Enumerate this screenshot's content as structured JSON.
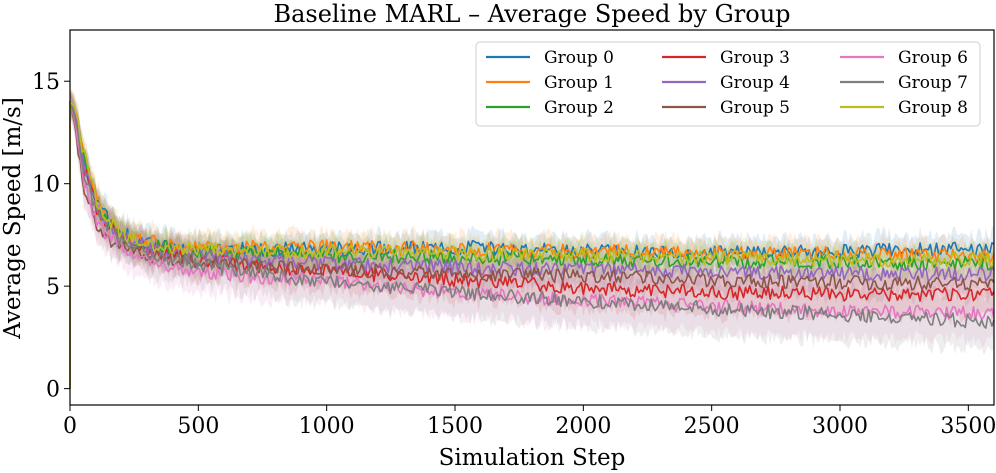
{
  "chart_data": {
    "type": "line",
    "title": "Baseline MARL – Average Speed by Group",
    "xlabel": "Simulation Step",
    "ylabel": "Average Speed [m/s]",
    "xlim": [
      0,
      3600
    ],
    "ylim": [
      -0.8,
      17.5
    ],
    "xticks": [
      0,
      500,
      1000,
      1500,
      2000,
      2500,
      3000,
      3500
    ],
    "yticks": [
      0,
      5,
      10,
      15
    ],
    "grid": false,
    "legend_position": "top-right",
    "legend_columns": 3,
    "shaded_band": true,
    "series": [
      {
        "name": "Group 0",
        "color": "#1f77b4",
        "x": [
          0,
          20,
          50,
          100,
          150,
          200,
          300,
          400,
          500,
          700,
          1000,
          1500,
          2000,
          2500,
          3000,
          3500,
          3600
        ],
        "y": [
          14.0,
          13.6,
          11.5,
          9.2,
          8.2,
          7.6,
          7.1,
          6.9,
          6.8,
          6.8,
          6.8,
          6.9,
          6.7,
          6.6,
          6.7,
          6.8,
          6.8
        ],
        "band": [
          0.6,
          0.6,
          0.7,
          0.7,
          0.7,
          0.7,
          0.7,
          0.7,
          0.7,
          0.7,
          0.7,
          0.7,
          0.7,
          0.7,
          0.7,
          0.7,
          0.7
        ]
      },
      {
        "name": "Group 1",
        "color": "#ff7f0e",
        "x": [
          0,
          20,
          50,
          100,
          150,
          200,
          300,
          400,
          500,
          700,
          1000,
          1500,
          2000,
          2500,
          3000,
          3500,
          3600
        ],
        "y": [
          14.0,
          13.7,
          11.8,
          9.4,
          8.3,
          7.7,
          7.2,
          7.0,
          6.9,
          6.9,
          6.9,
          6.8,
          6.7,
          6.6,
          6.6,
          6.5,
          6.5
        ],
        "band": [
          0.6,
          0.6,
          0.7,
          0.7,
          0.7,
          0.7,
          0.7,
          0.7,
          0.7,
          0.7,
          0.7,
          0.7,
          0.7,
          0.7,
          0.7,
          0.7,
          0.7
        ]
      },
      {
        "name": "Group 2",
        "color": "#2ca02c",
        "x": [
          0,
          20,
          50,
          100,
          150,
          200,
          300,
          400,
          500,
          700,
          1000,
          1500,
          2000,
          2500,
          3000,
          3500,
          3600
        ],
        "y": [
          14.0,
          13.5,
          11.3,
          9.1,
          8.1,
          7.5,
          7.0,
          6.8,
          6.7,
          6.6,
          6.5,
          6.4,
          6.3,
          6.2,
          6.2,
          6.1,
          6.1
        ],
        "band": [
          0.6,
          0.6,
          0.7,
          0.7,
          0.7,
          0.7,
          0.7,
          0.7,
          0.7,
          0.7,
          0.7,
          0.7,
          0.7,
          0.7,
          0.7,
          0.7,
          0.7
        ]
      },
      {
        "name": "Group 3",
        "color": "#d62728",
        "x": [
          0,
          20,
          50,
          100,
          150,
          200,
          300,
          400,
          500,
          700,
          1000,
          1500,
          2000,
          2500,
          3000,
          3500,
          3600
        ],
        "y": [
          14.0,
          13.4,
          11.0,
          8.9,
          7.9,
          7.3,
          6.8,
          6.5,
          6.3,
          6.0,
          5.7,
          5.3,
          4.9,
          4.7,
          4.6,
          4.6,
          4.6
        ],
        "band": [
          0.6,
          0.6,
          0.8,
          0.8,
          0.8,
          0.8,
          0.8,
          0.9,
          0.9,
          0.9,
          1.0,
          1.0,
          1.1,
          1.1,
          1.1,
          1.1,
          1.1
        ]
      },
      {
        "name": "Group 4",
        "color": "#9467bd",
        "x": [
          0,
          20,
          50,
          100,
          150,
          200,
          300,
          400,
          500,
          700,
          1000,
          1500,
          2000,
          2500,
          3000,
          3500,
          3600
        ],
        "y": [
          14.0,
          13.5,
          11.2,
          9.0,
          8.0,
          7.4,
          6.9,
          6.6,
          6.5,
          6.3,
          6.1,
          5.9,
          5.8,
          5.7,
          5.6,
          5.6,
          5.6
        ],
        "band": [
          0.6,
          0.6,
          0.7,
          0.7,
          0.7,
          0.7,
          0.7,
          0.7,
          0.7,
          0.7,
          0.7,
          0.7,
          0.7,
          0.7,
          0.7,
          0.7,
          0.7
        ]
      },
      {
        "name": "Group 5",
        "color": "#8c564b",
        "x": [
          0,
          20,
          50,
          100,
          150,
          200,
          300,
          400,
          500,
          700,
          1000,
          1500,
          2000,
          2500,
          3000,
          3500,
          3600
        ],
        "y": [
          14.0,
          12.8,
          10.0,
          8.1,
          7.3,
          6.9,
          6.5,
          6.3,
          6.2,
          6.0,
          5.8,
          5.6,
          5.5,
          5.3,
          5.2,
          5.1,
          5.1
        ],
        "band": [
          0.6,
          0.6,
          0.7,
          0.7,
          0.7,
          0.7,
          0.7,
          0.7,
          0.7,
          0.7,
          0.7,
          0.7,
          0.7,
          0.7,
          0.7,
          0.7,
          0.7
        ]
      },
      {
        "name": "Group 6",
        "color": "#e377c2",
        "x": [
          0,
          20,
          50,
          100,
          150,
          200,
          300,
          400,
          500,
          700,
          1000,
          1500,
          2000,
          2500,
          3000,
          3500,
          3600
        ],
        "y": [
          14.0,
          13.0,
          10.3,
          8.3,
          7.4,
          6.9,
          6.3,
          5.9,
          5.7,
          5.5,
          5.2,
          4.7,
          4.3,
          4.0,
          3.8,
          3.7,
          3.7
        ],
        "band": [
          0.6,
          0.7,
          0.9,
          0.9,
          1.0,
          1.0,
          1.0,
          1.0,
          1.0,
          1.1,
          1.1,
          1.2,
          1.2,
          1.3,
          1.3,
          1.3,
          1.3
        ]
      },
      {
        "name": "Group 7",
        "color": "#7f7f7f",
        "x": [
          0,
          20,
          50,
          100,
          150,
          200,
          300,
          400,
          500,
          700,
          1000,
          1500,
          2000,
          2500,
          3000,
          3500,
          3600
        ],
        "y": [
          14.0,
          13.2,
          10.8,
          8.7,
          7.8,
          7.2,
          6.7,
          6.3,
          6.1,
          5.7,
          5.2,
          4.7,
          4.3,
          3.9,
          3.6,
          3.3,
          3.3
        ],
        "band": [
          0.6,
          0.7,
          0.9,
          0.9,
          1.0,
          1.0,
          1.0,
          1.0,
          1.0,
          1.1,
          1.1,
          1.2,
          1.2,
          1.3,
          1.3,
          1.3,
          1.3
        ]
      },
      {
        "name": "Group 8",
        "color": "#bcbd22",
        "x": [
          0,
          20,
          50,
          100,
          150,
          200,
          300,
          400,
          500,
          700,
          1000,
          1500,
          2000,
          2500,
          3000,
          3500,
          3600
        ],
        "y": [
          14.0,
          13.7,
          11.7,
          9.3,
          8.2,
          7.6,
          7.1,
          6.9,
          6.8,
          6.7,
          6.7,
          6.6,
          6.5,
          6.4,
          6.3,
          6.3,
          6.3
        ],
        "band": [
          0.6,
          0.6,
          0.7,
          0.7,
          0.7,
          0.7,
          0.7,
          0.7,
          0.7,
          0.7,
          0.7,
          0.7,
          0.7,
          0.7,
          0.7,
          0.7,
          0.7
        ]
      }
    ]
  }
}
